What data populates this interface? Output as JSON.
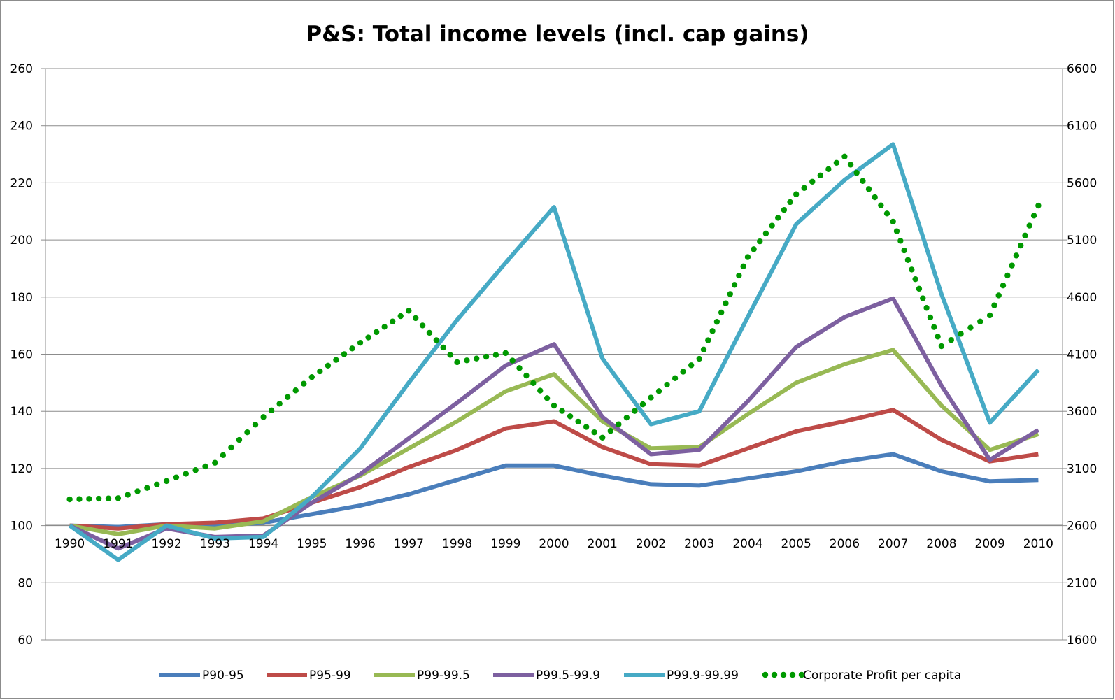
{
  "chart_data": {
    "type": "line",
    "title": "P&S: Total income levels (incl. cap gains)",
    "xlabel": "",
    "ylabel": "",
    "y2label": "",
    "ylim": [
      60,
      260
    ],
    "y2lim": [
      1600,
      6600
    ],
    "y_ticks": [
      "60",
      "80",
      "100",
      "120",
      "140",
      "160",
      "180",
      "200",
      "220",
      "240",
      "260"
    ],
    "y2_ticks": [
      "1600",
      "2100",
      "2600",
      "3100",
      "3600",
      "4100",
      "4600",
      "5100",
      "5600",
      "6100",
      "6600"
    ],
    "categories": [
      "1990",
      "1991",
      "1992",
      "1993",
      "1994",
      "1995",
      "1996",
      "1997",
      "1998",
      "1999",
      "2000",
      "2001",
      "2002",
      "2003",
      "2004",
      "2005",
      "2006",
      "2007",
      "2008",
      "2009",
      "2010"
    ],
    "grid": true,
    "legend_position": "bottom",
    "series": [
      {
        "name": "P90-95",
        "color": "#4a7ebb",
        "axis": "left",
        "style": "solid",
        "values": [
          100,
          99.5,
          100.5,
          100,
          101,
          104,
          107,
          111,
          116,
          121,
          121,
          117.5,
          114.5,
          114,
          116.5,
          119,
          122.5,
          125,
          119,
          115.5,
          116
        ]
      },
      {
        "name": "P95-99",
        "color": "#be4b48",
        "axis": "left",
        "style": "solid",
        "values": [
          100,
          99,
          100.5,
          101,
          102.5,
          108,
          113.5,
          120.5,
          126.5,
          134,
          136.5,
          127.5,
          121.5,
          121,
          127,
          133,
          136.5,
          140.5,
          130,
          122.5,
          125
        ]
      },
      {
        "name": "P99-99.5",
        "color": "#98b954",
        "axis": "left",
        "style": "solid",
        "values": [
          100,
          97,
          100,
          99,
          101.5,
          110,
          117.5,
          127,
          136.5,
          147,
          153,
          136.5,
          127,
          127.5,
          139,
          150,
          156.5,
          161.5,
          142,
          126.5,
          132
        ]
      },
      {
        "name": "P99.5-99.9",
        "color": "#7d60a0",
        "axis": "left",
        "style": "solid",
        "values": [
          100,
          92,
          99,
          96,
          96.5,
          108,
          118,
          130.5,
          143,
          156,
          163.5,
          138,
          125,
          126.5,
          143.5,
          162.5,
          173,
          179.5,
          149,
          123,
          133.5
        ]
      },
      {
        "name": "P99.9-99.99",
        "color": "#46aac5",
        "axis": "left",
        "style": "solid",
        "values": [
          100,
          88,
          100,
          95.5,
          96,
          110,
          127,
          150,
          172,
          192,
          211.5,
          158.5,
          135.5,
          140,
          173,
          205.5,
          221,
          233.5,
          181,
          136,
          154.5
        ]
      },
      {
        "name": "Corporate Profit per capita",
        "color": "#009900",
        "axis": "right",
        "style": "dotted",
        "values": [
          2830,
          2840,
          2990,
          3150,
          3550,
          3900,
          4200,
          4480,
          4030,
          4110,
          3650,
          3370,
          3720,
          4060,
          4950,
          5500,
          5830,
          5260,
          4170,
          4440,
          5400
        ]
      }
    ]
  }
}
